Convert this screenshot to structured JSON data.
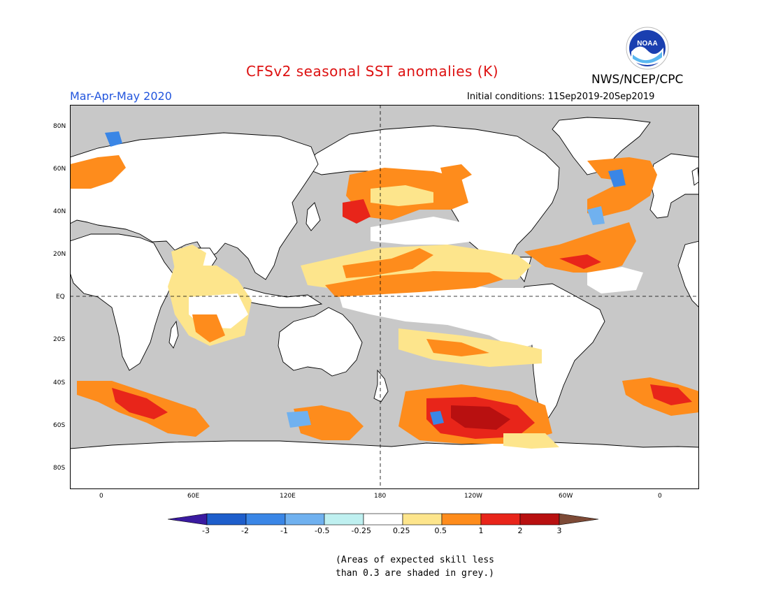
{
  "header": {
    "title": "CFSv2 seasonal SST anomalies (K)",
    "title_color": "#dd1111",
    "org": "NWS/NCEP/CPC",
    "season": "Mar-Apr-May 2020",
    "season_color": "#2255dd",
    "initial_conditions": "Initial conditions: 11Sep2019-20Sep2019",
    "logo_text": "NOAA"
  },
  "map": {
    "lat_labels": [
      "80N",
      "60N",
      "40N",
      "20N",
      "EQ",
      "20S",
      "40S",
      "60S",
      "80S"
    ],
    "lon_labels": [
      "0",
      "60E",
      "120E",
      "180",
      "120W",
      "60W",
      "0"
    ],
    "land_color": "#ffffff",
    "skill_mask_color": "#c8c8c8"
  },
  "colorbar": {
    "ticks": [
      "-3",
      "-2",
      "-1",
      "-0.5",
      "-0.25",
      "0.25",
      "0.5",
      "1",
      "2",
      "3"
    ],
    "colors": [
      "#3a1aa0",
      "#1e5ecb",
      "#3a86e6",
      "#70b1ef",
      "#bff0f0",
      "#ffffff",
      "#fde58c",
      "#fe8c1c",
      "#e8251a",
      "#b81010",
      "#7d4a36"
    ]
  },
  "note": {
    "line1": "(Areas of expected skill less",
    "line2": "than 0.3 are shaded in grey.)"
  }
}
